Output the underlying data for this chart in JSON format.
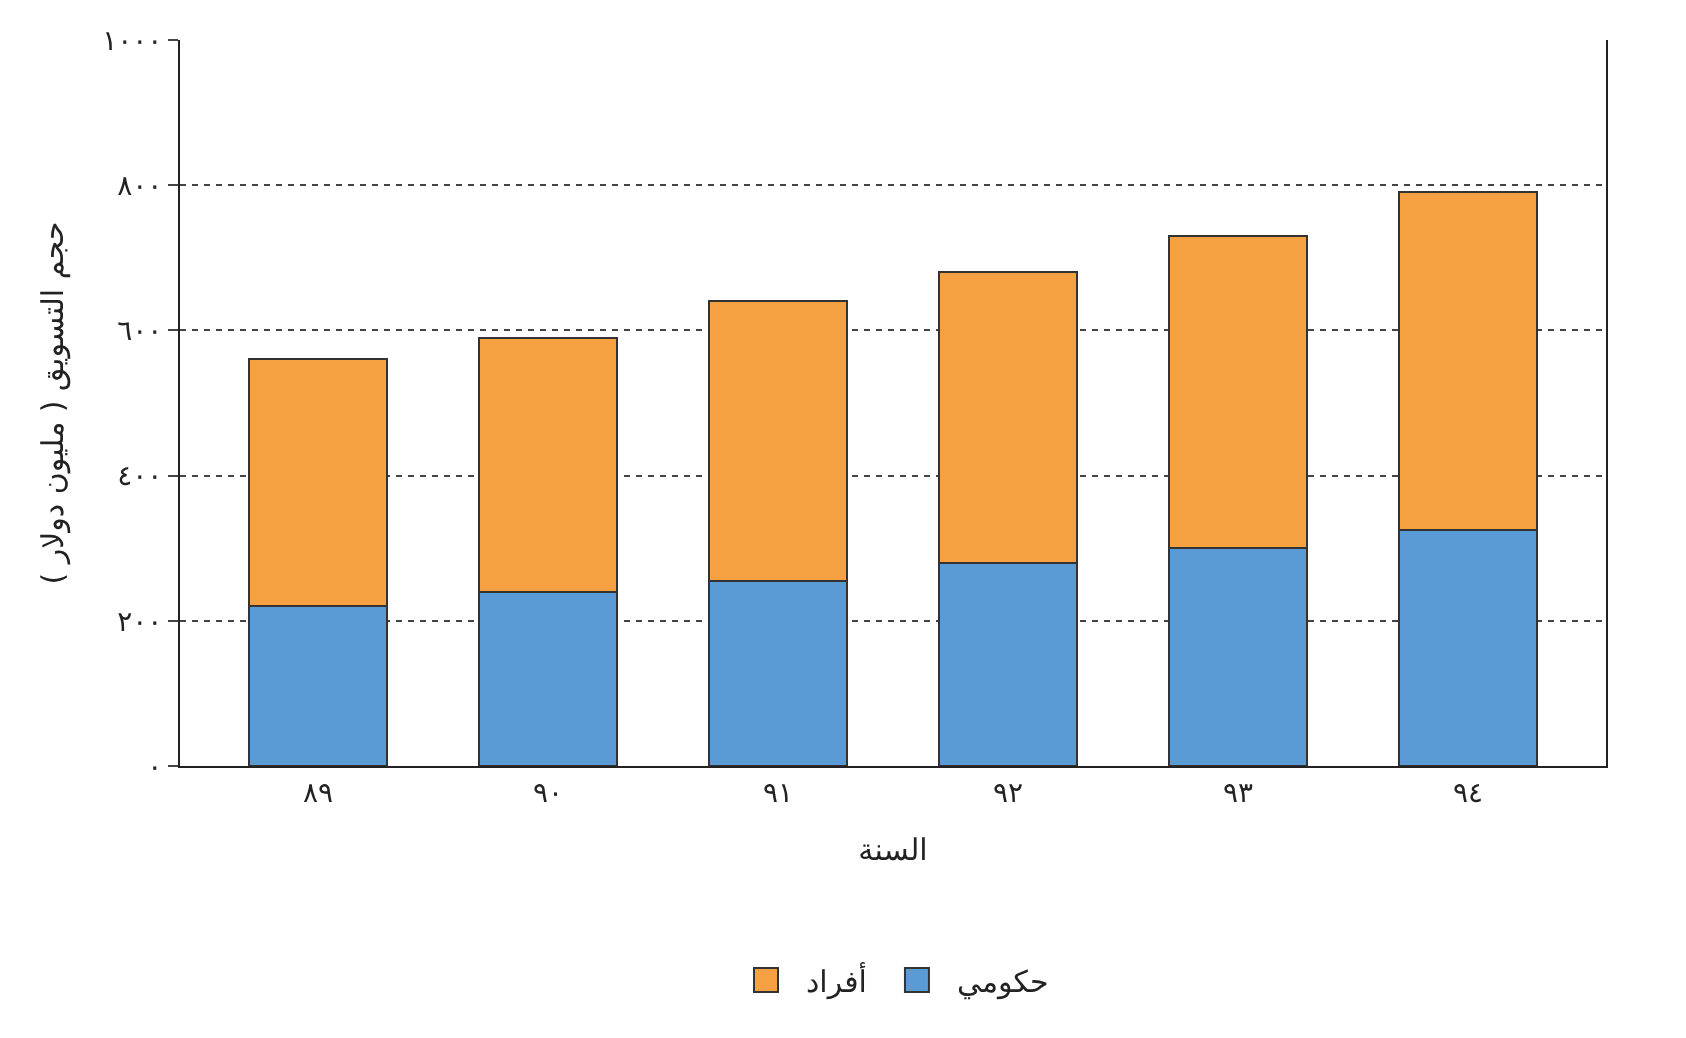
{
  "chart_data": {
    "type": "bar",
    "stacked": true,
    "xlabel": "السنة",
    "ylabel": "حجم التسويق ( مليون دولار )",
    "categories": [
      "٨٩",
      "٩٠",
      "٩١",
      "٩٢",
      "٩٣",
      "٩٤"
    ],
    "series": [
      {
        "name": "حكومي",
        "color": "#5b9bd5",
        "values": [
          220,
          240,
          255,
          280,
          300,
          325
        ]
      },
      {
        "name": "أفراد",
        "color": "#f5a142",
        "values": [
          340,
          350,
          385,
          400,
          430,
          465
        ]
      }
    ],
    "ylim": [
      0,
      1000
    ],
    "yticks": [
      {
        "value": 0,
        "label": "٠"
      },
      {
        "value": 200,
        "label": "٢٠٠"
      },
      {
        "value": 400,
        "label": "٤٠٠"
      },
      {
        "value": 600,
        "label": "٦٠٠"
      },
      {
        "value": 800,
        "label": "٨٠٠"
      },
      {
        "value": 1000,
        "label": "١٠٠٠"
      }
    ],
    "grid": "y",
    "legend": "bottom"
  }
}
